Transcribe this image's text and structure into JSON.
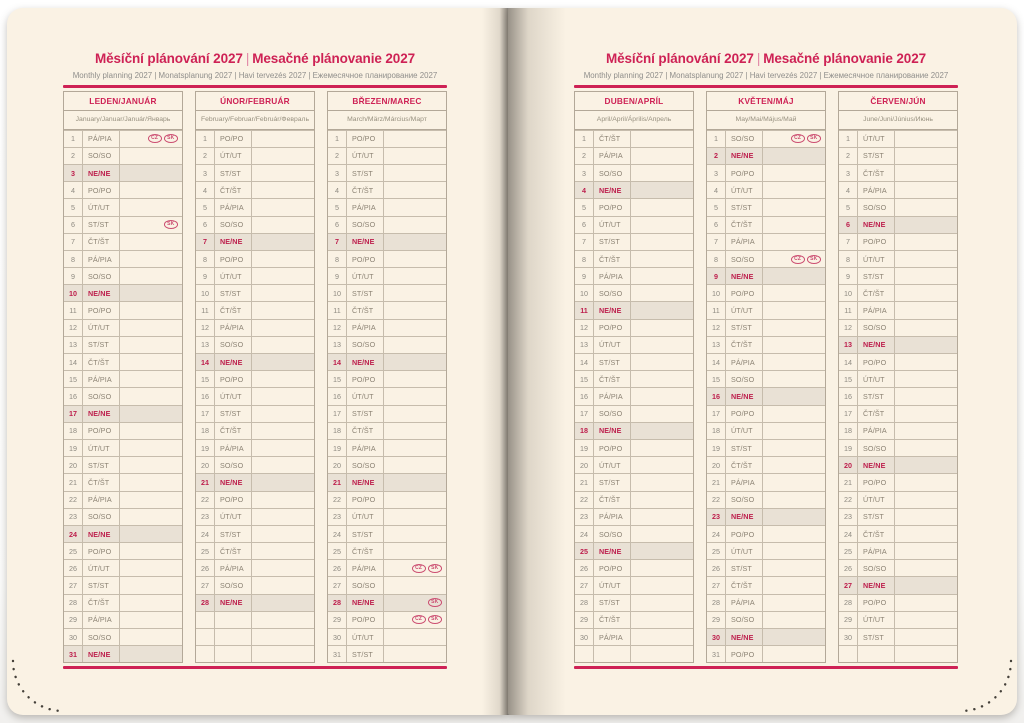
{
  "header": {
    "title_cz": "Měsíční plánování 2027",
    "title_separator": "|",
    "title_sk": "Mesačné plánovanie 2027",
    "subtitle": "Monthly planning 2027 | Monatsplanung 2027 | Havi tervezés 2027 | Ежемесячное планирование 2027"
  },
  "holiday_badges": [
    "CZ",
    "SK"
  ],
  "colors": {
    "accent_pink": "#ce2255",
    "sunday_red": "#bd1e4c",
    "page_cream": "#faf2e4",
    "sunday_row_shade": "#e9e1d5",
    "table_border": "#b3a898",
    "day_text_gray": "#8c8374"
  },
  "pages": [
    {
      "side": "left",
      "month_indexes": [
        0,
        1,
        2
      ]
    },
    {
      "side": "right",
      "month_indexes": [
        3,
        4,
        5
      ]
    }
  ],
  "months": [
    {
      "name": "LEDEN/JANUÁR",
      "langs": "January/Januar/Január/Январь",
      "rows": [
        [
          1,
          "PÁ/PIA",
          [
            "CZ",
            "SK"
          ]
        ],
        [
          2,
          "SO/SO"
        ],
        [
          3,
          "NE/NE"
        ],
        [
          4,
          "PO/PO"
        ],
        [
          5,
          "ÚT/UT"
        ],
        [
          6,
          "ST/ST",
          [
            "SK"
          ]
        ],
        [
          7,
          "ČT/ŠT"
        ],
        [
          8,
          "PÁ/PIA"
        ],
        [
          9,
          "SO/SO"
        ],
        [
          10,
          "NE/NE"
        ],
        [
          11,
          "PO/PO"
        ],
        [
          12,
          "ÚT/UT"
        ],
        [
          13,
          "ST/ST"
        ],
        [
          14,
          "ČT/ŠT"
        ],
        [
          15,
          "PÁ/PIA"
        ],
        [
          16,
          "SO/SO"
        ],
        [
          17,
          "NE/NE"
        ],
        [
          18,
          "PO/PO"
        ],
        [
          19,
          "ÚT/UT"
        ],
        [
          20,
          "ST/ST"
        ],
        [
          21,
          "ČT/ŠT"
        ],
        [
          22,
          "PÁ/PIA"
        ],
        [
          23,
          "SO/SO"
        ],
        [
          24,
          "NE/NE"
        ],
        [
          25,
          "PO/PO"
        ],
        [
          26,
          "ÚT/UT"
        ],
        [
          27,
          "ST/ST"
        ],
        [
          28,
          "ČT/ŠT"
        ],
        [
          29,
          "PÁ/PIA"
        ],
        [
          30,
          "SO/SO"
        ],
        [
          31,
          "NE/NE"
        ]
      ]
    },
    {
      "name": "ÚNOR/FEBRUÁR",
      "langs": "February/Februar/Február/Февраль",
      "rows": [
        [
          1,
          "PO/PO"
        ],
        [
          2,
          "ÚT/UT"
        ],
        [
          3,
          "ST/ST"
        ],
        [
          4,
          "ČT/ŠT"
        ],
        [
          5,
          "PÁ/PIA"
        ],
        [
          6,
          "SO/SO"
        ],
        [
          7,
          "NE/NE"
        ],
        [
          8,
          "PO/PO"
        ],
        [
          9,
          "ÚT/UT"
        ],
        [
          10,
          "ST/ST"
        ],
        [
          11,
          "ČT/ŠT"
        ],
        [
          12,
          "PÁ/PIA"
        ],
        [
          13,
          "SO/SO"
        ],
        [
          14,
          "NE/NE"
        ],
        [
          15,
          "PO/PO"
        ],
        [
          16,
          "ÚT/UT"
        ],
        [
          17,
          "ST/ST"
        ],
        [
          18,
          "ČT/ŠT"
        ],
        [
          19,
          "PÁ/PIA"
        ],
        [
          20,
          "SO/SO"
        ],
        [
          21,
          "NE/NE"
        ],
        [
          22,
          "PO/PO"
        ],
        [
          23,
          "ÚT/UT"
        ],
        [
          24,
          "ST/ST"
        ],
        [
          25,
          "ČT/ŠT"
        ],
        [
          26,
          "PÁ/PIA"
        ],
        [
          27,
          "SO/SO"
        ],
        [
          28,
          "NE/NE"
        ],
        [
          "",
          ""
        ],
        [
          "",
          ""
        ],
        [
          "",
          ""
        ]
      ]
    },
    {
      "name": "BŘEZEN/MAREC",
      "langs": "March/März/Március/Март",
      "rows": [
        [
          1,
          "PO/PO"
        ],
        [
          2,
          "ÚT/UT"
        ],
        [
          3,
          "ST/ST"
        ],
        [
          4,
          "ČT/ŠT"
        ],
        [
          5,
          "PÁ/PIA"
        ],
        [
          6,
          "SO/SO"
        ],
        [
          7,
          "NE/NE"
        ],
        [
          8,
          "PO/PO"
        ],
        [
          9,
          "ÚT/UT"
        ],
        [
          10,
          "ST/ST"
        ],
        [
          11,
          "ČT/ŠT"
        ],
        [
          12,
          "PÁ/PIA"
        ],
        [
          13,
          "SO/SO"
        ],
        [
          14,
          "NE/NE"
        ],
        [
          15,
          "PO/PO"
        ],
        [
          16,
          "ÚT/UT"
        ],
        [
          17,
          "ST/ST"
        ],
        [
          18,
          "ČT/ŠT"
        ],
        [
          19,
          "PÁ/PIA"
        ],
        [
          20,
          "SO/SO"
        ],
        [
          21,
          "NE/NE"
        ],
        [
          22,
          "PO/PO"
        ],
        [
          23,
          "ÚT/UT"
        ],
        [
          24,
          "ST/ST"
        ],
        [
          25,
          "ČT/ŠT"
        ],
        [
          26,
          "PÁ/PIA",
          [
            "CZ",
            "SK"
          ]
        ],
        [
          27,
          "SO/SO"
        ],
        [
          28,
          "NE/NE",
          [
            "SK"
          ]
        ],
        [
          29,
          "PO/PO",
          [
            "CZ",
            "SK"
          ]
        ],
        [
          30,
          "ÚT/UT"
        ],
        [
          31,
          "ST/ST"
        ]
      ]
    },
    {
      "name": "DUBEN/APRÍL",
      "langs": "April/April/Április/Апрель",
      "rows": [
        [
          1,
          "ČT/ŠT"
        ],
        [
          2,
          "PÁ/PIA"
        ],
        [
          3,
          "SO/SO"
        ],
        [
          4,
          "NE/NE"
        ],
        [
          5,
          "PO/PO"
        ],
        [
          6,
          "ÚT/UT"
        ],
        [
          7,
          "ST/ST"
        ],
        [
          8,
          "ČT/ŠT"
        ],
        [
          9,
          "PÁ/PIA"
        ],
        [
          10,
          "SO/SO"
        ],
        [
          11,
          "NE/NE"
        ],
        [
          12,
          "PO/PO"
        ],
        [
          13,
          "ÚT/UT"
        ],
        [
          14,
          "ST/ST"
        ],
        [
          15,
          "ČT/ŠT"
        ],
        [
          16,
          "PÁ/PIA"
        ],
        [
          17,
          "SO/SO"
        ],
        [
          18,
          "NE/NE"
        ],
        [
          19,
          "PO/PO"
        ],
        [
          20,
          "ÚT/UT"
        ],
        [
          21,
          "ST/ST"
        ],
        [
          22,
          "ČT/ŠT"
        ],
        [
          23,
          "PÁ/PIA"
        ],
        [
          24,
          "SO/SO"
        ],
        [
          25,
          "NE/NE"
        ],
        [
          26,
          "PO/PO"
        ],
        [
          27,
          "ÚT/UT"
        ],
        [
          28,
          "ST/ST"
        ],
        [
          29,
          "ČT/ŠT"
        ],
        [
          30,
          "PÁ/PIA"
        ],
        [
          "",
          ""
        ]
      ]
    },
    {
      "name": "KVĚTEN/MÁJ",
      "langs": "May/Mai/Május/Май",
      "rows": [
        [
          1,
          "SO/SO",
          [
            "CZ",
            "SK"
          ]
        ],
        [
          2,
          "NE/NE"
        ],
        [
          3,
          "PO/PO"
        ],
        [
          4,
          "ÚT/UT"
        ],
        [
          5,
          "ST/ST"
        ],
        [
          6,
          "ČT/ŠT"
        ],
        [
          7,
          "PÁ/PIA"
        ],
        [
          8,
          "SO/SO",
          [
            "CZ",
            "SK"
          ]
        ],
        [
          9,
          "NE/NE"
        ],
        [
          10,
          "PO/PO"
        ],
        [
          11,
          "ÚT/UT"
        ],
        [
          12,
          "ST/ST"
        ],
        [
          13,
          "ČT/ŠT"
        ],
        [
          14,
          "PÁ/PIA"
        ],
        [
          15,
          "SO/SO"
        ],
        [
          16,
          "NE/NE"
        ],
        [
          17,
          "PO/PO"
        ],
        [
          18,
          "ÚT/UT"
        ],
        [
          19,
          "ST/ST"
        ],
        [
          20,
          "ČT/ŠT"
        ],
        [
          21,
          "PÁ/PIA"
        ],
        [
          22,
          "SO/SO"
        ],
        [
          23,
          "NE/NE"
        ],
        [
          24,
          "PO/PO"
        ],
        [
          25,
          "ÚT/UT"
        ],
        [
          26,
          "ST/ST"
        ],
        [
          27,
          "ČT/ŠT"
        ],
        [
          28,
          "PÁ/PIA"
        ],
        [
          29,
          "SO/SO"
        ],
        [
          30,
          "NE/NE"
        ],
        [
          31,
          "PO/PO"
        ]
      ]
    },
    {
      "name": "ČERVEN/JÚN",
      "langs": "June/Juni/Június/Июнь",
      "rows": [
        [
          1,
          "ÚT/UT"
        ],
        [
          2,
          "ST/ST"
        ],
        [
          3,
          "ČT/ŠT"
        ],
        [
          4,
          "PÁ/PIA"
        ],
        [
          5,
          "SO/SO"
        ],
        [
          6,
          "NE/NE"
        ],
        [
          7,
          "PO/PO"
        ],
        [
          8,
          "ÚT/UT"
        ],
        [
          9,
          "ST/ST"
        ],
        [
          10,
          "ČT/ŠT"
        ],
        [
          11,
          "PÁ/PIA"
        ],
        [
          12,
          "SO/SO"
        ],
        [
          13,
          "NE/NE"
        ],
        [
          14,
          "PO/PO"
        ],
        [
          15,
          "ÚT/UT"
        ],
        [
          16,
          "ST/ST"
        ],
        [
          17,
          "ČT/ŠT"
        ],
        [
          18,
          "PÁ/PIA"
        ],
        [
          19,
          "SO/SO"
        ],
        [
          20,
          "NE/NE"
        ],
        [
          21,
          "PO/PO"
        ],
        [
          22,
          "ÚT/UT"
        ],
        [
          23,
          "ST/ST"
        ],
        [
          24,
          "ČT/ŠT"
        ],
        [
          25,
          "PÁ/PIA"
        ],
        [
          26,
          "SO/SO"
        ],
        [
          27,
          "NE/NE"
        ],
        [
          28,
          "PO/PO"
        ],
        [
          29,
          "ÚT/UT"
        ],
        [
          30,
          "ST/ST"
        ],
        [
          "",
          ""
        ]
      ]
    }
  ]
}
